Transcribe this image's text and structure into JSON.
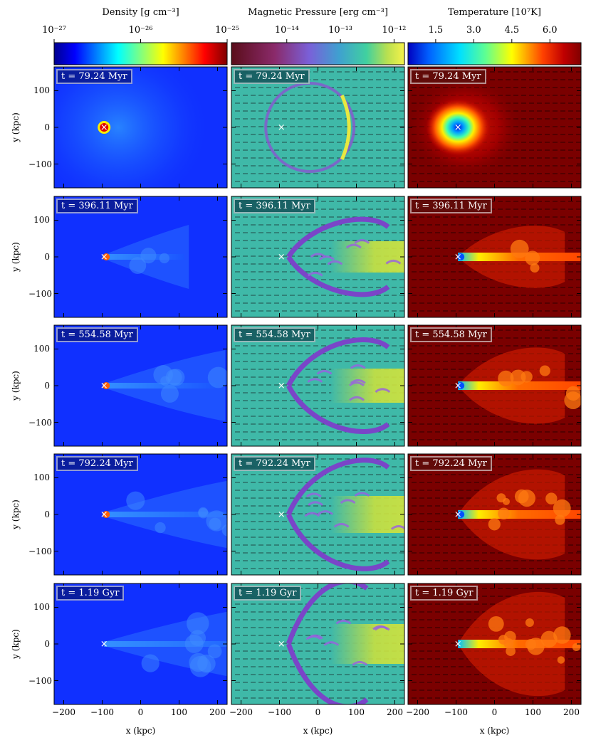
{
  "colorbars": [
    {
      "title": "Density [g cm⁻³]",
      "tick_labels": [
        "10⁻²⁷",
        "10⁻²⁶",
        "10⁻²⁵"
      ],
      "tick_positions": [
        0,
        0.5,
        1
      ],
      "colormap": "jet"
    },
    {
      "title": "Magnetic Pressure [erg cm⁻³]",
      "tick_labels": [
        "10⁻¹⁴",
        "10⁻¹³",
        "10⁻¹²"
      ],
      "tick_positions": [
        0.32,
        0.63,
        0.94
      ],
      "colormap": "viridis-like"
    },
    {
      "title": "Temperature [10⁷K]",
      "tick_labels": [
        "1.5",
        "3.0",
        "4.5",
        "6.0"
      ],
      "tick_positions": [
        0.16,
        0.38,
        0.6,
        0.82
      ],
      "colormap": "jet-to-darkred"
    }
  ],
  "rows": [
    {
      "time_label": "t = 79.24 Myr",
      "stage": 0
    },
    {
      "time_label": "t = 396.11 Myr",
      "stage": 1
    },
    {
      "time_label": "t = 554.58 Myr",
      "stage": 2
    },
    {
      "time_label": "t = 792.24 Myr",
      "stage": 3
    },
    {
      "time_label": "t = 1.19 Gyr",
      "stage": 4
    }
  ],
  "axes": {
    "xlabel": "x  (kpc)",
    "ylabel": "y  (kpc)",
    "xlim": [
      -225,
      225
    ],
    "ylim": [
      -165,
      165
    ],
    "xticks": [
      -200,
      -100,
      0,
      100,
      200
    ],
    "xtick_labels": [
      "−200",
      "−100",
      "0",
      "100",
      "200"
    ],
    "yticks": [
      100,
      0,
      -100
    ],
    "ytick_labels": [
      "100",
      "0",
      "−100"
    ]
  },
  "marker": {
    "symbol": "×",
    "x": -95,
    "y": 0
  },
  "colors": {
    "density_background": "#1030ff",
    "bfield_background": "#3fb9a8",
    "temperature_background": "#7a0000"
  }
}
